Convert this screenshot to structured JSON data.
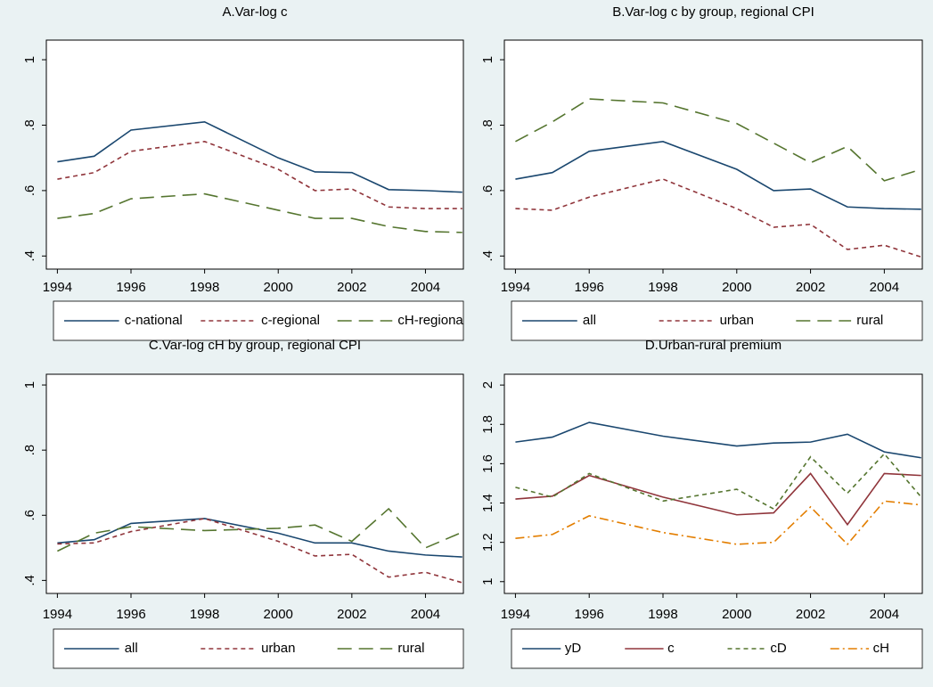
{
  "chart_data": [
    {
      "type": "line",
      "title": "A.Var-log c",
      "x": [
        1994,
        1995,
        1996,
        1998,
        2000,
        2001,
        2002,
        2003,
        2004,
        2005
      ],
      "xlim": [
        1993.7,
        2005.03
      ],
      "xticks": [
        1994,
        1996,
        1998,
        2000,
        2002,
        2004
      ],
      "ylim": [
        0.36,
        1.06
      ],
      "yticks": [
        {
          "value": 0.4,
          "label": ".4"
        },
        {
          "value": 0.6,
          "label": ".6"
        },
        {
          "value": 0.8,
          "label": ".8"
        },
        1
      ],
      "series": [
        {
          "name": "c-national",
          "color": "#1a476f",
          "style": "solid",
          "values": [
            0.688,
            0.705,
            0.785,
            0.81,
            0.7,
            0.657,
            0.655,
            0.603,
            0.6,
            0.595
          ]
        },
        {
          "name": "c-regional",
          "color": "#90353b",
          "style": "dash",
          "values": [
            0.635,
            0.655,
            0.72,
            0.75,
            0.665,
            0.6,
            0.605,
            0.55,
            0.545,
            0.545
          ]
        },
        {
          "name": "cH-regiona",
          "color": "#55752f",
          "style": "longdash",
          "values": [
            0.515,
            0.53,
            0.575,
            0.59,
            0.54,
            0.515,
            0.515,
            0.49,
            0.475,
            0.472
          ]
        }
      ]
    },
    {
      "type": "line",
      "title": "B.Var-log c by group, regional CPI",
      "x": [
        1994,
        1995,
        1996,
        1998,
        2000,
        2001,
        2002,
        2003,
        2004,
        2005
      ],
      "xlim": [
        1993.7,
        2005.03
      ],
      "xticks": [
        1994,
        1996,
        1998,
        2000,
        2002,
        2004
      ],
      "ylim": [
        0.36,
        1.06
      ],
      "yticks": [
        {
          "value": 0.4,
          "label": ".4"
        },
        {
          "value": 0.6,
          "label": ".6"
        },
        {
          "value": 0.8,
          "label": ".8"
        },
        1
      ],
      "series": [
        {
          "name": "all",
          "color": "#1a476f",
          "style": "solid",
          "values": [
            0.635,
            0.655,
            0.72,
            0.75,
            0.665,
            0.6,
            0.605,
            0.55,
            0.545,
            0.543
          ]
        },
        {
          "name": "urban",
          "color": "#90353b",
          "style": "dash",
          "values": [
            0.545,
            0.54,
            0.58,
            0.635,
            0.545,
            0.488,
            0.497,
            0.42,
            0.433,
            0.397
          ]
        },
        {
          "name": "rural",
          "color": "#55752f",
          "style": "longdash",
          "values": [
            0.75,
            0.81,
            0.88,
            0.868,
            0.805,
            0.745,
            0.685,
            0.735,
            0.63,
            0.665
          ]
        }
      ]
    },
    {
      "type": "line",
      "title": "C.Var-log cH by group, regional CPI",
      "x": [
        1994,
        1995,
        1996,
        1998,
        2000,
        2001,
        2002,
        2003,
        2004,
        2005
      ],
      "xlim": [
        1993.7,
        2005.03
      ],
      "xticks": [
        1994,
        1996,
        1998,
        2000,
        2002,
        2004
      ],
      "ylim": [
        0.36,
        1.033
      ],
      "yticks": [
        {
          "value": 0.4,
          "label": ".4"
        },
        {
          "value": 0.6,
          "label": ".6"
        },
        {
          "value": 0.8,
          "label": ".8"
        },
        1
      ],
      "series": [
        {
          "name": "all",
          "color": "#1a476f",
          "style": "solid",
          "values": [
            0.515,
            0.525,
            0.575,
            0.59,
            0.545,
            0.515,
            0.515,
            0.49,
            0.478,
            0.472
          ]
        },
        {
          "name": "urban",
          "color": "#90353b",
          "style": "dash",
          "values": [
            0.512,
            0.515,
            0.55,
            0.59,
            0.52,
            0.475,
            0.48,
            0.41,
            0.425,
            0.393
          ]
        },
        {
          "name": "rural",
          "color": "#55752f",
          "style": "longdash",
          "values": [
            0.49,
            0.545,
            0.565,
            0.553,
            0.56,
            0.57,
            0.52,
            0.62,
            0.5,
            0.548
          ]
        }
      ]
    },
    {
      "type": "line",
      "title": "D.Urban-rural premium",
      "x": [
        1994,
        1995,
        1996,
        1998,
        2000,
        2001,
        2002,
        2003,
        2004,
        2005
      ],
      "xlim": [
        1993.7,
        2005.03
      ],
      "xticks": [
        1994,
        1996,
        1998,
        2000,
        2002,
        2004
      ],
      "ylim": [
        0.94,
        2.055
      ],
      "yticks": [
        1,
        1.2,
        1.4,
        1.6,
        1.8,
        2
      ],
      "series": [
        {
          "name": "yD",
          "color": "#1a476f",
          "style": "solid",
          "values": [
            1.71,
            1.735,
            1.81,
            1.74,
            1.69,
            1.705,
            1.71,
            1.75,
            1.66,
            1.63
          ]
        },
        {
          "name": "c",
          "color": "#90353b",
          "style": "solid",
          "values": [
            1.42,
            1.435,
            1.54,
            1.43,
            1.34,
            1.35,
            1.55,
            1.29,
            1.55,
            1.54
          ]
        },
        {
          "name": "cD",
          "color": "#55752f",
          "style": "dash",
          "values": [
            1.48,
            1.43,
            1.55,
            1.41,
            1.47,
            1.37,
            1.635,
            1.45,
            1.65,
            1.43
          ]
        },
        {
          "name": "cH",
          "color": "#e37e00",
          "style": "dashdot",
          "values": [
            1.22,
            1.24,
            1.335,
            1.25,
            1.19,
            1.2,
            1.38,
            1.19,
            1.41,
            1.39
          ]
        }
      ]
    }
  ]
}
